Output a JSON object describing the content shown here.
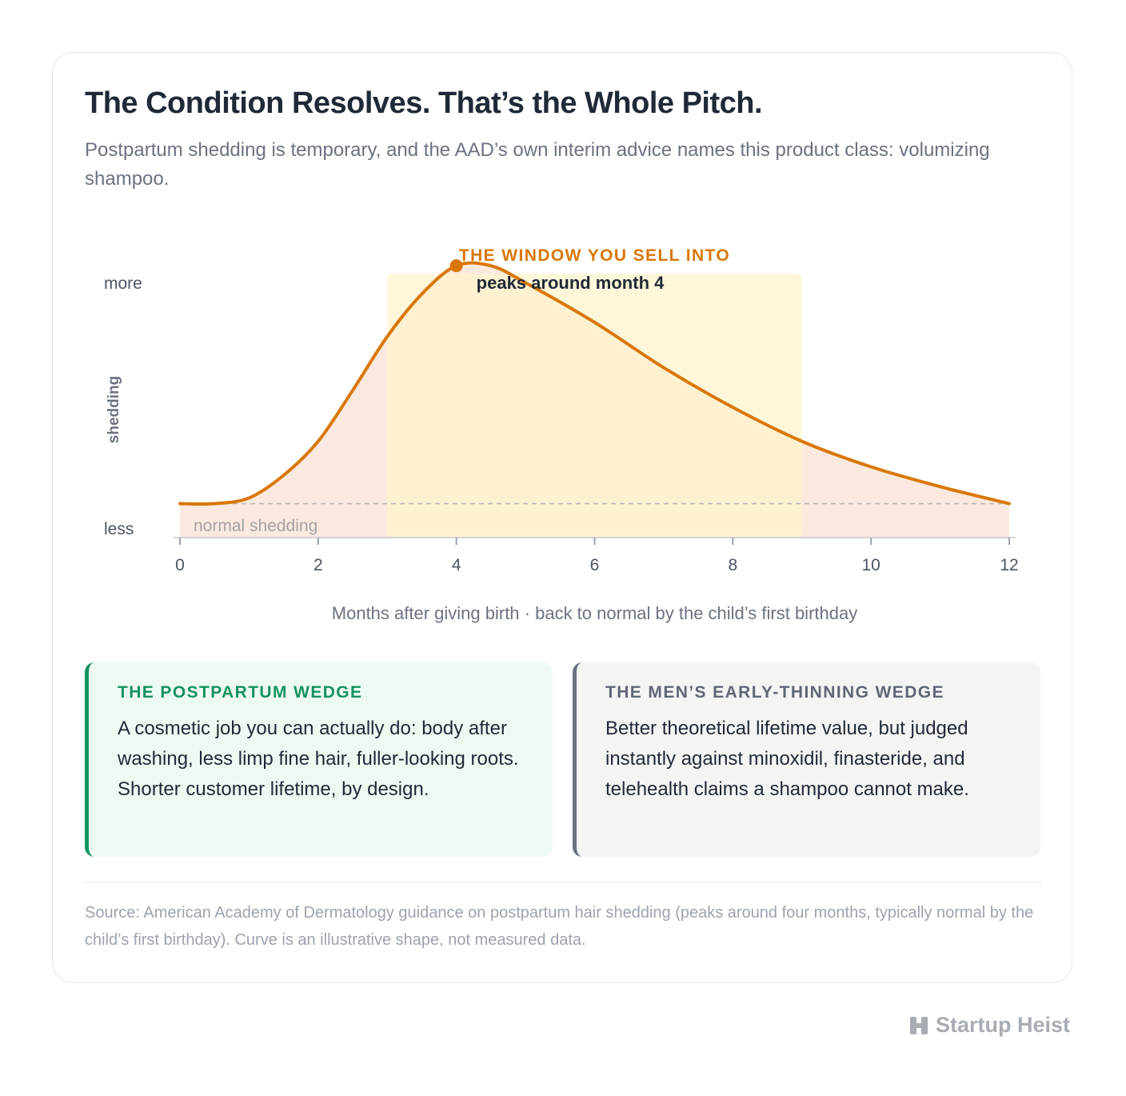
{
  "header": {
    "title": "The Condition Resolves. That’s the Whole Pitch.",
    "subtitle": "Postpartum shedding is temporary, and the AAD’s own interim advice names this product class: volumizing shampoo."
  },
  "chart_data": {
    "type": "area",
    "x": [
      0,
      0.5,
      1,
      1.5,
      2,
      2.5,
      3,
      3.5,
      4,
      4.5,
      5,
      6,
      7,
      8,
      9,
      10,
      11,
      12
    ],
    "y": [
      0.12,
      0.12,
      0.14,
      0.22,
      0.34,
      0.52,
      0.71,
      0.86,
      0.96,
      0.96,
      0.9,
      0.76,
      0.6,
      0.46,
      0.34,
      0.25,
      0.18,
      0.12
    ],
    "xlim": [
      0,
      12
    ],
    "ylim": [
      0,
      1
    ],
    "x_ticks": [
      "0",
      "2",
      "4",
      "6",
      "8",
      "10",
      "12"
    ],
    "ylabel": "shedding",
    "y_tick_top": "more",
    "y_tick_bottom": "less",
    "xlabel": "Months after giving birth · back to normal by the child’s first birthday",
    "baseline": {
      "y": 0.12,
      "label": "normal shedding"
    },
    "window": {
      "x_start": 3,
      "x_end": 9,
      "label": "THE WINDOW YOU SELL INTO"
    },
    "peak": {
      "x": 4,
      "y": 0.96,
      "label": "peaks around month 4"
    },
    "grid": false,
    "colors": {
      "line": "#d97706",
      "area": "#fbe9df",
      "window": "#fff4cc",
      "baseline": "#b5b5b5",
      "label": "#d97706"
    }
  },
  "wedges": [
    {
      "title": "THE POSTPARTUM WEDGE",
      "body": "A cosmetic job you can actually do: body after washing, less limp fine hair, fuller-looking roots. Shorter customer lifetime, by design.",
      "accent": "#15935f"
    },
    {
      "title": "THE MEN’S EARLY-THINNING WEDGE",
      "body": "Better theoretical lifetime value, but judged instantly against minoxidil, finasteride, and telehealth claims a shampoo cannot make.",
      "accent": "#6b7280"
    }
  ],
  "footer": {
    "source": "Source: American Academy of Dermatology guidance on postpartum hair shedding (peaks around four months, typically normal by the child’s first birthday). Curve is an illustrative shape, not measured data."
  },
  "brand": {
    "name": "Startup Heist",
    "icon": "building-logo-icon"
  }
}
